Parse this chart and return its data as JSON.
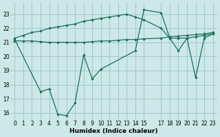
{
  "xlabel": "Humidex (Indice chaleur)",
  "bg_color": "#cce8e8",
  "grid_color": "#a0c8c8",
  "line_color": "#1a6b5a",
  "xlim": [
    -0.5,
    23.5
  ],
  "ylim": [
    15.5,
    23.8
  ],
  "yticks": [
    16,
    17,
    18,
    19,
    20,
    21,
    22,
    23
  ],
  "xticks": [
    0,
    1,
    2,
    3,
    4,
    5,
    6,
    7,
    8,
    9,
    10,
    11,
    12,
    13,
    14,
    15,
    17,
    18,
    19,
    20,
    21,
    22,
    23
  ],
  "line1_x": [
    0,
    1,
    2,
    3,
    4,
    5,
    6,
    7,
    8,
    9,
    10,
    11,
    12,
    13,
    14,
    15,
    17,
    18,
    19,
    20,
    21,
    22,
    23
  ],
  "line1_y": [
    21.3,
    21.5,
    21.7,
    21.8,
    22.0,
    22.1,
    22.2,
    22.3,
    22.5,
    22.6,
    22.7,
    22.8,
    22.9,
    23.0,
    22.8,
    22.6,
    22.0,
    21.3,
    21.3,
    21.3,
    21.4,
    21.5,
    21.6
  ],
  "line2_x": [
    0,
    1,
    2,
    3,
    4,
    5,
    6,
    7,
    8,
    9,
    10,
    11,
    12,
    13,
    14,
    15,
    17,
    18,
    19,
    20,
    21,
    22,
    23
  ],
  "line2_y": [
    21.1,
    21.1,
    21.1,
    21.05,
    21.0,
    21.0,
    21.0,
    21.0,
    21.0,
    21.05,
    21.1,
    21.1,
    21.15,
    21.2,
    21.2,
    21.25,
    21.3,
    21.4,
    21.45,
    21.5,
    21.55,
    21.6,
    21.7
  ],
  "line3_x": [
    0,
    3,
    4,
    5,
    6,
    7,
    8,
    9,
    10,
    14,
    15,
    17,
    18,
    19,
    20,
    21,
    22,
    23
  ],
  "line3_y": [
    21.2,
    17.5,
    17.7,
    15.9,
    15.8,
    16.7,
    20.1,
    18.4,
    19.1,
    20.4,
    23.3,
    23.1,
    21.3,
    20.4,
    21.3,
    18.5,
    21.3,
    21.6
  ]
}
